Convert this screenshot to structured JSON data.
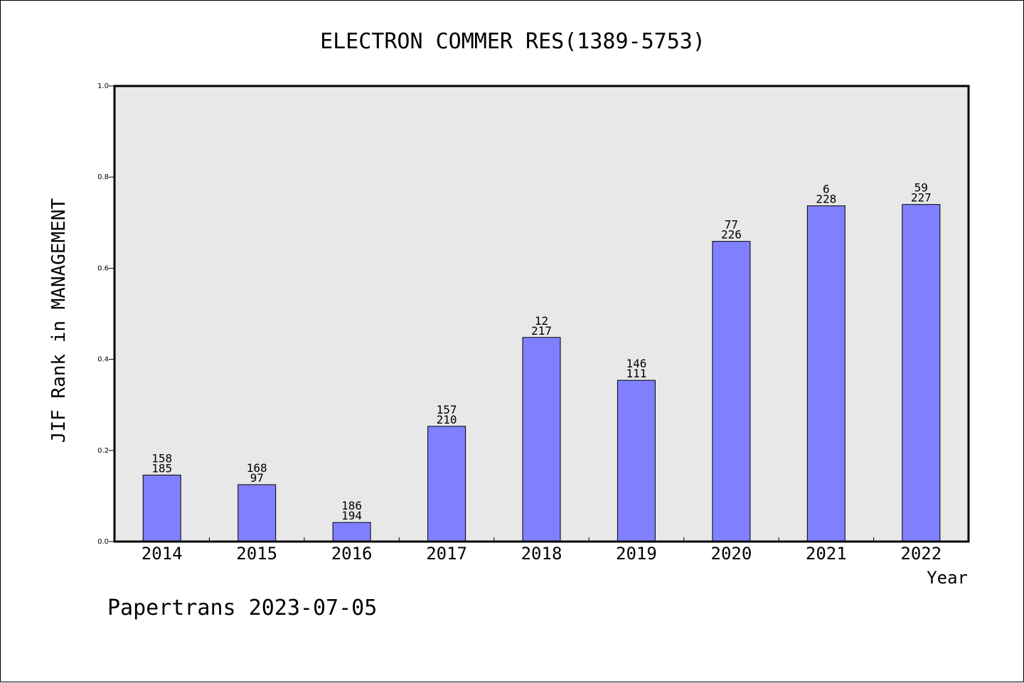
{
  "chart_data": {
    "type": "bar",
    "title": "ELECTRON COMMER RES(1389-5753)",
    "xlabel": "Year",
    "ylabel": "JIF Rank in MANAGEMENT",
    "ylim": [
      0,
      1.0
    ],
    "yticks": [
      "0.0",
      "0.2",
      "0.4",
      "0.6",
      "0.8",
      "1.0"
    ],
    "categories": [
      "2014",
      "2015",
      "2016",
      "2017",
      "2018",
      "2019",
      "2020",
      "2021",
      "2022"
    ],
    "values": [
      0.146,
      0.125,
      0.042,
      0.253,
      0.448,
      0.354,
      0.659,
      0.737,
      0.74
    ],
    "labels_top": [
      "158",
      "168",
      "186",
      "157",
      "12",
      "146",
      "77",
      "6",
      "59"
    ],
    "labels_bottom": [
      "185",
      "97",
      "194",
      "210",
      "217",
      "111",
      "226",
      "228",
      "227"
    ],
    "grid": false,
    "colors": {
      "bar": "#8080ff",
      "plot_background": "#e8e8e8"
    }
  },
  "footer": {
    "text": "Papertrans 2023-07-05"
  }
}
